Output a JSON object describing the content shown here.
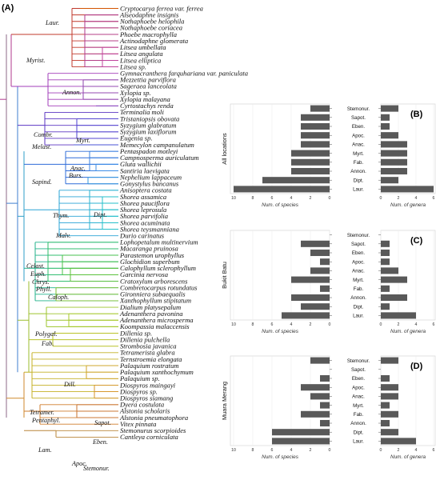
{
  "panel_A_label": "(A)",
  "species": [
    "Cryptocarya ferrea  var. ferrea",
    "Alseodaphne insignis",
    "Nothaphoebe helophila",
    "Nothaphoebe coriacea",
    "Phoebe macrophylla",
    "Actinodaphne glomerata",
    "Litsea umbellata",
    "Litsea angulata",
    "Litsea elliptica",
    "Litsea sp.",
    "Gymnacranthera farquhariana  var. paniculata",
    "Mezzettia parviflora",
    "Sageraea lanceolata",
    "Xylopia sp.",
    "Xylopia malayana",
    "Cyrtostachys renda",
    "Terminalia moli",
    "Tristaniopsis obovata",
    "Syzygium glabratum",
    "Syzygium laxiflorum",
    "Eugenia sp.",
    "Memecylon campanulatum",
    "Pentaspadon motleyi",
    "Campnosperma auriculatum",
    "Gluta wallichii",
    "Santiria laevigata",
    "Nephelium lappaceum",
    "Gonystylus bancanus",
    "Anisoptera costata",
    "Shorea assamica",
    "Shorea pauciflora",
    "Shorea leprosula",
    "Shorea parvifolia",
    "Shorea acuminata",
    "Shorea teysmanniana",
    "Durio carinatus",
    "Lophopetalum multinervium",
    "Macaranga pruinosa",
    "Parastemon urophyllus",
    "Glochidion superbum",
    "Calophyllum sclerophyllum",
    "Garcinia nervosa",
    "Cratoxylum arborescens",
    "Combretocarpus rotundatus",
    "Gironniera subaequalis",
    "Xanthophyllum stipitatum",
    "Dialium platysepalum",
    "Adenanthera pavonina",
    "Adenanthera microsperma",
    "Koompassia malaccensis",
    "Dillenia sp.",
    "Dillenia pulchella",
    "Strombosia javanica",
    "Tetramerista glabra",
    "Ternstroemia elongata",
    "Palaquium rostratum",
    "Palaquium xanthochymum",
    "Palaquium sp.",
    "Diospyros maingayi",
    "Diospyros sp.",
    "Diospyros siamang",
    "Dyera costulata",
    "Alstonia scholaris",
    "Alstonia pneumatophora",
    "Vitex pinnata",
    "Stemonurus scorpioides",
    "Cantleya corniculata"
  ],
  "clades": [
    "Laur.",
    "Myrist.",
    "Annon.",
    "Combr.",
    "Myrt.",
    "Melast.",
    "Anac.",
    "Burs.",
    "Sapind.",
    "Thym.",
    "Dipt.",
    "Malv.",
    "Celast.",
    "Euph.",
    "Chrys.",
    "Phyll.",
    "Caloph.",
    "Polygal.",
    "Fab.",
    "Dill.",
    "Tetramer.",
    "Pentaphyl.",
    "Sapot.",
    "Eben.",
    "Apoc.",
    "Lam.",
    "Stemonur."
  ],
  "families": [
    "Stemonur.",
    "Sapot.",
    "Eben.",
    "Apoc.",
    "Anac.",
    "Myrt.",
    "Fab.",
    "Annon.",
    "Dipt.",
    "Laur."
  ],
  "bar_axis": {
    "ticks_species": [
      "10",
      "8",
      "6",
      "4",
      "2",
      "0"
    ],
    "ticks_genera": [
      "0",
      "2",
      "4",
      "6"
    ],
    "xlabel_species": "Num. of species",
    "xlabel_genera": "Num. of genera"
  },
  "chart_data": [
    {
      "panel": "(B)",
      "location": "All locations",
      "type": "bar",
      "categories": [
        "Stemonur.",
        "Sapot.",
        "Eben.",
        "Apoc.",
        "Anac.",
        "Myrt.",
        "Fab.",
        "Annon.",
        "Dipt.",
        "Laur."
      ],
      "species": [
        2,
        3,
        3,
        3,
        3,
        4,
        4,
        4,
        7,
        10
      ],
      "genera": [
        2,
        1,
        1,
        2,
        3,
        3,
        3,
        3,
        2,
        6
      ]
    },
    {
      "panel": "(C)",
      "location": "Bukit Batu",
      "type": "bar",
      "categories": [
        "Stemonur.",
        "Sapot.",
        "Eben.",
        "Apoc.",
        "Anac.",
        "Myrt.",
        "Fab.",
        "Annon.",
        "Dipt.",
        "Laur."
      ],
      "species": [
        0,
        3,
        2,
        1,
        2,
        4,
        1,
        4,
        3,
        5
      ],
      "genera": [
        0,
        1,
        1,
        1,
        2,
        3,
        1,
        3,
        1,
        4
      ]
    },
    {
      "panel": "(D)",
      "location": "Muara Merang",
      "type": "bar",
      "categories": [
        "Stemonur.",
        "Sapot.",
        "Eben.",
        "Apoc.",
        "Anac.",
        "Myrt.",
        "Fab.",
        "Annon.",
        "Dipt.",
        "Laur."
      ],
      "species": [
        2,
        0,
        1,
        3,
        2,
        1,
        3,
        1,
        6,
        6
      ],
      "genera": [
        2,
        0,
        1,
        2,
        2,
        1,
        2,
        1,
        2,
        4
      ]
    }
  ]
}
